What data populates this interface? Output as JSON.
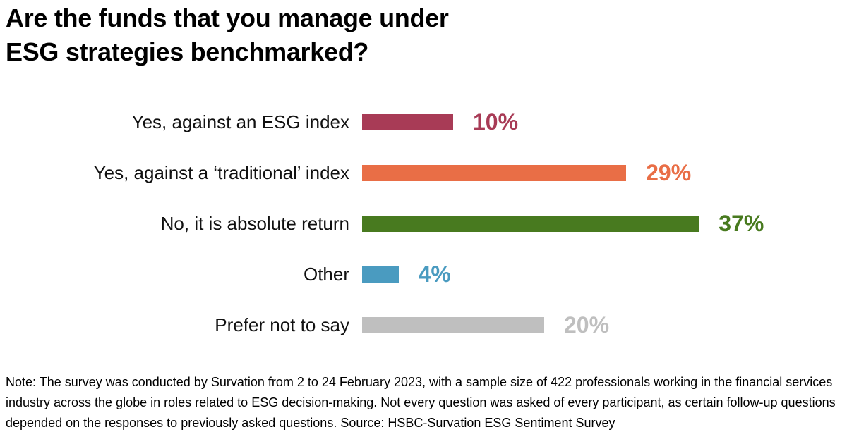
{
  "header": {
    "title_line1": "Are the funds that you manage under",
    "title_line2": "ESG strategies benchmarked?"
  },
  "chart_data": {
    "type": "bar",
    "orientation": "horizontal",
    "title": "Are the funds that you manage under ESG strategies benchmarked?",
    "categories": [
      "Yes, against an ESG index",
      "Yes, against a ‘traditional’ index",
      "No, it is absolute return",
      "Other",
      "Prefer not to say"
    ],
    "values": [
      10,
      29,
      37,
      4,
      20
    ],
    "value_labels": [
      "10%",
      "29%",
      "37%",
      "4%",
      "20%"
    ],
    "bar_colors": [
      "#A83B56",
      "#E96E46",
      "#487A1F",
      "#4A9BC0",
      "#BFBFBF"
    ],
    "unit": "%",
    "xlim": [
      0,
      40
    ],
    "grid": false,
    "legend": false,
    "value_label_position": "right-of-bar",
    "category_label_position": "left-of-bar"
  },
  "footer": {
    "note": "Note: The survey was conducted by Survation from 2 to 24 February 2023, with a sample size of 422 professionals working in the financial services industry across the globe in roles related to ESG decision-making. Not every question was asked of every participant, as certain follow-up questions depended on the responses to previously asked questions. Source: HSBC-Survation ESG Sentiment Survey"
  }
}
